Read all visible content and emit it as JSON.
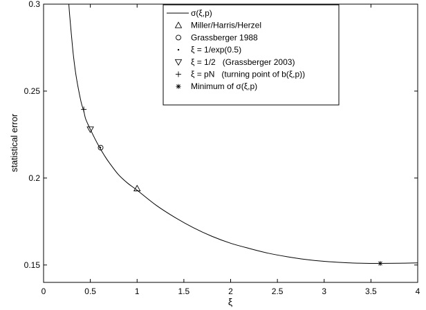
{
  "chart_data": {
    "type": "line",
    "xlabel": "ξ",
    "ylabel": "statistical error",
    "xlim": [
      0,
      4
    ],
    "ylim": [
      0.14,
      0.3
    ],
    "x_ticks": [
      {
        "v": 0,
        "label": "0"
      },
      {
        "v": 0.5,
        "label": "0.5"
      },
      {
        "v": 1,
        "label": "1"
      },
      {
        "v": 1.5,
        "label": "1.5"
      },
      {
        "v": 2,
        "label": "2"
      },
      {
        "v": 2.5,
        "label": "2.5"
      },
      {
        "v": 3,
        "label": "3"
      },
      {
        "v": 3.5,
        "label": "3.5"
      },
      {
        "v": 4,
        "label": "4"
      }
    ],
    "y_ticks": [
      {
        "v": 0.15,
        "label": "0.15"
      },
      {
        "v": 0.2,
        "label": "0.2"
      },
      {
        "v": 0.25,
        "label": "0.25"
      },
      {
        "v": 0.3,
        "label": "0.3"
      }
    ],
    "grid": false,
    "legend_position": "top-center",
    "series": [
      {
        "name": "σ(ξ,p)",
        "kind": "line",
        "x": [
          0.27,
          0.28,
          0.3,
          0.32,
          0.35,
          0.4,
          0.43,
          0.45,
          0.5,
          0.55,
          0.6,
          0.65,
          0.7,
          0.8,
          0.9,
          1.0,
          1.2,
          1.4,
          1.6,
          1.8,
          2.0,
          2.2,
          2.4,
          2.6,
          2.8,
          3.0,
          3.2,
          3.4,
          3.6,
          3.8,
          4.0
        ],
        "y": [
          0.3,
          0.293,
          0.281,
          0.27,
          0.258,
          0.244,
          0.2385,
          0.234,
          0.228,
          0.2225,
          0.2175,
          0.213,
          0.209,
          0.202,
          0.197,
          0.193,
          0.1845,
          0.1775,
          0.1715,
          0.1665,
          0.1625,
          0.1595,
          0.1568,
          0.1548,
          0.1532,
          0.1521,
          0.1514,
          0.151,
          0.1509,
          0.151,
          0.1512
        ]
      },
      {
        "name": "Miller/Harris/Herzel",
        "kind": "marker",
        "marker": "triangle-up",
        "x": [
          1.0
        ],
        "y": [
          0.194
        ]
      },
      {
        "name": "Grassberger 1988",
        "kind": "marker",
        "marker": "circle",
        "x": [
          0.61
        ],
        "y": [
          0.2175
        ]
      },
      {
        "name": "ξ = 1/exp(0.5)",
        "kind": "marker",
        "marker": "dot",
        "x": [
          0.607
        ],
        "y": [
          0.2176
        ]
      },
      {
        "name": "ξ = 1/2   (Grassberger 2003)",
        "kind": "marker",
        "marker": "triangle-down",
        "x": [
          0.5
        ],
        "y": [
          0.228
        ]
      },
      {
        "name": "ξ = pN   (turning point of b(ξ,p))",
        "kind": "marker",
        "marker": "plus",
        "x": [
          0.43
        ],
        "y": [
          0.2395
        ]
      },
      {
        "name": "Minimum of σ(ξ,p)",
        "kind": "marker",
        "marker": "star",
        "x": [
          3.6
        ],
        "y": [
          0.1509
        ]
      }
    ]
  }
}
